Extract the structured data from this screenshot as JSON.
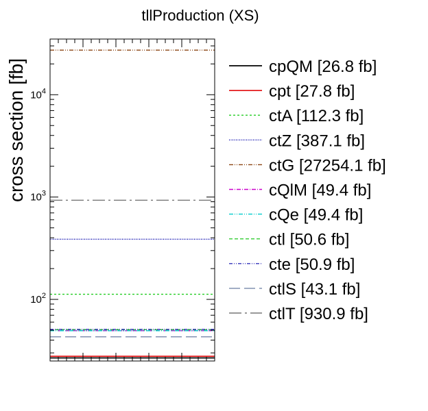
{
  "chart_data": {
    "type": "line",
    "title": "tllProduction (XS)",
    "xlabel": "",
    "ylabel": "cross section [fb]",
    "yscale": "log",
    "ylim": [
      25,
      35000
    ],
    "grid": false,
    "legend_position": "right",
    "y_tick_labels": [
      {
        "value": 100,
        "base": "10",
        "exp": "2"
      },
      {
        "value": 1000,
        "base": "10",
        "exp": "3"
      },
      {
        "value": 10000,
        "base": "10",
        "exp": "4"
      }
    ],
    "series": [
      {
        "name": "cpQM",
        "label": "cpQM [26.8 fb]",
        "value": 26.8,
        "color": "#000000",
        "dash": ""
      },
      {
        "name": "cpt",
        "label": "cpt [27.8 fb]",
        "value": 27.8,
        "color": "#e41a1c",
        "dash": ""
      },
      {
        "name": "ctA",
        "label": "ctA [112.3 fb]",
        "value": 112.3,
        "color": "#22cc22",
        "dash": "3,3"
      },
      {
        "name": "ctZ",
        "label": "ctZ [387.1 fb]",
        "value": 387.1,
        "color": "#0000aa",
        "dash": "1,1.5"
      },
      {
        "name": "ctG",
        "label": "ctG [27254.1 fb]",
        "value": 27254.1,
        "color": "#8b4513",
        "dash": "6,2,1,2,1,2"
      },
      {
        "name": "cQlM",
        "label": "cQlM [49.4 fb]",
        "value": 49.4,
        "color": "#cc00cc",
        "dash": "6,2,1,2"
      },
      {
        "name": "cQe",
        "label": "cQe [49.4 fb]",
        "value": 49.4,
        "color": "#00cccc",
        "dash": "6,2,1,2,1,2"
      },
      {
        "name": "ctl",
        "label": "ctl [50.6 fb]",
        "value": 50.6,
        "color": "#33cc33",
        "dash": "5,3"
      },
      {
        "name": "cte",
        "label": "cte [50.9 fb]",
        "value": 50.9,
        "color": "#3333bb",
        "dash": "5,2,1,2,1,2"
      },
      {
        "name": "ctlS",
        "label": "ctlS [43.1 fb]",
        "value": 43.1,
        "color": "#7788aa",
        "dash": "16,6"
      },
      {
        "name": "ctlT",
        "label": "ctlT [930.9 fb]",
        "value": 930.9,
        "color": "#777777",
        "dash": "18,5,3,5"
      }
    ]
  }
}
